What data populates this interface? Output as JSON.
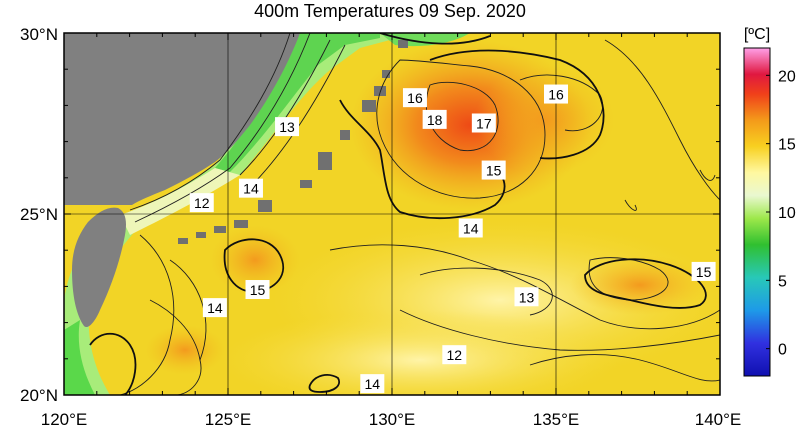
{
  "title": "400m Temperatures  09 Sep. 2020",
  "x_ticks": [
    "120°E",
    "125°E",
    "130°E",
    "135°E",
    "140°E"
  ],
  "y_ticks": [
    "30°N",
    "25°N",
    "20°N"
  ],
  "colorbar": {
    "unit": "[ºC]",
    "ticks": [
      "20",
      "15",
      "10",
      "5",
      "0"
    ],
    "range": [
      -2,
      22
    ]
  },
  "contour_labels": [
    {
      "text": "16",
      "lon": 130.7,
      "lat": 28.2
    },
    {
      "text": "18",
      "lon": 131.3,
      "lat": 27.6
    },
    {
      "text": "17",
      "lon": 132.8,
      "lat": 27.5
    },
    {
      "text": "16",
      "lon": 135.0,
      "lat": 28.3
    },
    {
      "text": "13",
      "lon": 126.8,
      "lat": 27.4
    },
    {
      "text": "14",
      "lon": 125.7,
      "lat": 25.7
    },
    {
      "text": "12",
      "lon": 124.2,
      "lat": 25.3
    },
    {
      "text": "15",
      "lon": 133.1,
      "lat": 26.2
    },
    {
      "text": "14",
      "lon": 132.4,
      "lat": 24.6
    },
    {
      "text": "15",
      "lon": 125.9,
      "lat": 22.9
    },
    {
      "text": "14",
      "lon": 124.6,
      "lat": 22.4
    },
    {
      "text": "13",
      "lon": 134.1,
      "lat": 22.7
    },
    {
      "text": "15",
      "lon": 139.5,
      "lat": 23.4
    },
    {
      "text": "12",
      "lon": 131.9,
      "lat": 21.1
    },
    {
      "text": "14",
      "lon": 129.4,
      "lat": 20.3
    }
  ],
  "colors": {
    "land": "#808080",
    "ocean_base": "#f2d21f",
    "warm_core": "#f07a1a",
    "cool_coast": "#7ee06a"
  }
}
